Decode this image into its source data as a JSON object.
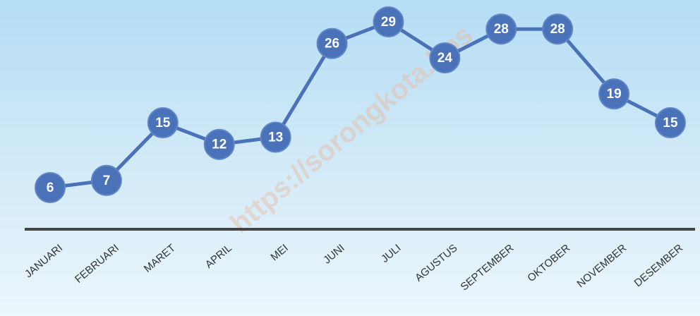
{
  "chart_data": {
    "type": "line",
    "categories": [
      "JANUARI",
      "FEBRUARI",
      "MARET",
      "APRIL",
      "MEI",
      "JUNI",
      "JULI",
      "AGUSTUS",
      "SEPTEMBER",
      "OKTOBER",
      "NOVEMBER",
      "DESEMBER"
    ],
    "values": [
      6,
      7,
      15,
      12,
      13,
      26,
      29,
      24,
      28,
      28,
      19,
      15
    ],
    "color": "#4a72b8",
    "watermark": "https://sorongkota.bps"
  }
}
